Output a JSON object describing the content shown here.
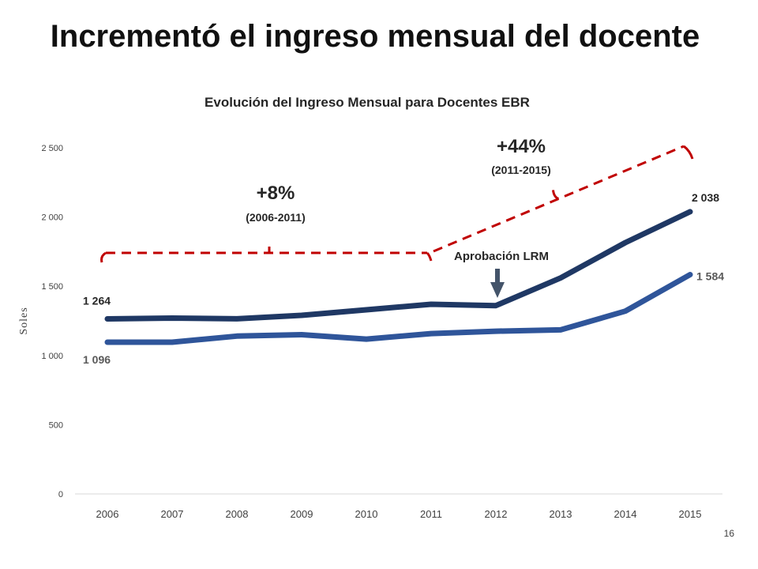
{
  "slide": {
    "title": "Incrementó el ingreso mensual del docente",
    "page_number": "16"
  },
  "colors": {
    "series_dark": "#1F3864",
    "series_light": "#2F559A",
    "annotation": "#C00000",
    "arrow": "#44546A"
  },
  "chart_data": {
    "type": "line",
    "title": "Evolución del Ingreso Mensual para Docentes EBR",
    "ylabel": "Soles",
    "xlabel": "",
    "x": [
      "2006",
      "2007",
      "2008",
      "2009",
      "2010",
      "2011",
      "2012",
      "2013",
      "2014",
      "2015"
    ],
    "ylim": [
      0,
      2500
    ],
    "yticks": [
      0,
      500,
      1000,
      1500,
      2000,
      2500
    ],
    "ytick_labels": [
      "0",
      "500",
      "1 000",
      "1 500",
      "2 000",
      "2 500"
    ],
    "grid": false,
    "legend": "none",
    "series": [
      {
        "values": [
          1264,
          1270,
          1265,
          1290,
          1330,
          1370,
          1360,
          1560,
          1815,
          2038
        ],
        "start_label": "1 264",
        "end_label": "2 038"
      },
      {
        "values": [
          1096,
          1096,
          1140,
          1150,
          1118,
          1158,
          1175,
          1185,
          1320,
          1584
        ],
        "start_label": "1 096",
        "end_label": "1 584"
      }
    ],
    "annotations": {
      "period1": {
        "label": "+8%",
        "sublabel": "(2006-2011)"
      },
      "period2": {
        "label": "+44%",
        "sublabel": "(2011-2015)"
      },
      "event": {
        "label": "Aprobación LRM",
        "year": "2012"
      }
    }
  }
}
